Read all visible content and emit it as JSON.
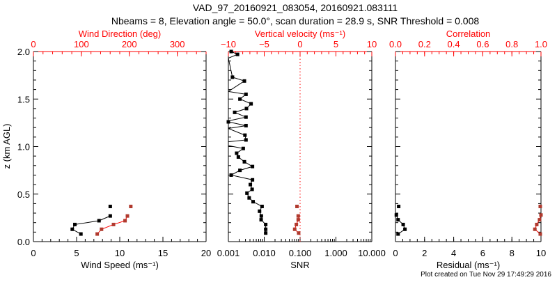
{
  "title": "VAD_97_20160921_083054, 20160921.083111",
  "subtitle": "Nbeams = 8, Elevation angle = 50.0°, scan duration = 28.9 s, SNR Threshold = 0.008",
  "footer": "Plot created on Tue Nov 29 17:49:29 2016",
  "colors": {
    "primary": "#000000",
    "secondary": "#ff0000",
    "secondary_marker": "#b03a2e"
  },
  "ylabel": "z (km AGL)",
  "yticks": [
    "0.0",
    "0.5",
    "1.0",
    "1.5",
    "2.0"
  ],
  "chart_data": [
    {
      "type": "line",
      "ylim": [
        0,
        2
      ],
      "xlabel": "Wind Speed (ms⁻¹)",
      "xlim": [
        0,
        20
      ],
      "xticks": [
        "0",
        "5",
        "10",
        "15",
        "20"
      ],
      "top_label": "Wind Direction (deg)",
      "top_lim": [
        0,
        360
      ],
      "top_ticks": [
        "0",
        "100",
        "200",
        "300"
      ],
      "series": [
        {
          "name": "Wind Speed",
          "axis": "bottom",
          "color": "#000000",
          "z": [
            0.37,
            0.27,
            0.22,
            0.18,
            0.13,
            0.08
          ],
          "values": [
            8.9,
            8.9,
            7.6,
            4.8,
            4.5,
            5.5
          ],
          "line_from": 1
        },
        {
          "name": "Wind Direction",
          "axis": "top",
          "color": "#b03a2e",
          "z": [
            0.37,
            0.27,
            0.22,
            0.18,
            0.13,
            0.08
          ],
          "values": [
            203,
            196,
            191,
            167,
            142,
            133
          ],
          "line_from": 1
        }
      ]
    },
    {
      "type": "line",
      "ylim": [
        0,
        2
      ],
      "xlabel": "SNR",
      "xscale": "log",
      "xlim": [
        0.001,
        10
      ],
      "xticks": [
        "0.001",
        "0.010",
        "0.100",
        "1.000",
        "10.000"
      ],
      "top_label": "Vertical velocity (ms⁻¹)",
      "top_lim": [
        -10,
        10
      ],
      "top_ticks": [
        "−10",
        "−5",
        "0",
        "5",
        "10"
      ],
      "zero_line": 0,
      "series": [
        {
          "name": "SNR",
          "axis": "bottom",
          "color": "#000000",
          "z": [
            2.0,
            1.97,
            1.93,
            1.73,
            1.69,
            1.58,
            1.55,
            1.5,
            1.45,
            1.4,
            1.36,
            1.31,
            1.27,
            1.26,
            1.22,
            1.19,
            1.12,
            1.07,
            1.05,
            1.01,
            0.98,
            0.93,
            0.89,
            0.84,
            0.79,
            0.75,
            0.7,
            0.65,
            0.6,
            0.55,
            0.51,
            0.46,
            0.42,
            0.37,
            0.32,
            0.27,
            0.23,
            0.18,
            0.13,
            0.09
          ],
          "values": [
            0.0012,
            0.0018,
            0.0005,
            0.0013,
            0.0028,
            0.0005,
            0.0031,
            0.0021,
            0.0043,
            0.0032,
            0.0015,
            0.0031,
            0.0005,
            0.001,
            0.0031,
            0.0005,
            0.0029,
            0.0031,
            0.0005,
            0.0005,
            0.0026,
            0.0017,
            0.0019,
            0.0028,
            0.0047,
            0.0021,
            0.0012,
            0.0047,
            0.0041,
            0.0046,
            0.0033,
            0.0038,
            0.0049,
            0.0087,
            0.0074,
            0.0083,
            0.0082,
            0.011,
            0.011,
            0.011
          ],
          "line_from": 0
        },
        {
          "name": "Vertical velocity",
          "axis": "top",
          "color": "#b03a2e",
          "z": [
            0.37,
            0.27,
            0.23,
            0.18,
            0.13,
            0.09
          ],
          "values": [
            -0.43,
            -0.26,
            -0.26,
            -0.52,
            -0.75,
            -0.2
          ],
          "line_from": 1
        }
      ]
    },
    {
      "type": "line",
      "ylim": [
        0,
        2
      ],
      "xlabel": "Residual (ms⁻¹)",
      "xlim": [
        0,
        10
      ],
      "xticks": [
        "0",
        "2",
        "4",
        "6",
        "8",
        "10"
      ],
      "top_label": "Correlation",
      "top_lim": [
        0,
        1
      ],
      "top_ticks": [
        "0.0",
        "0.2",
        "0.4",
        "0.6",
        "0.8",
        "1.0"
      ],
      "series": [
        {
          "name": "Residual",
          "axis": "bottom",
          "color": "#000000",
          "z": [
            0.37,
            0.28,
            0.23,
            0.18,
            0.13,
            0.08
          ],
          "values": [
            0.22,
            0.06,
            0.18,
            0.53,
            0.65,
            0.18
          ],
          "line_from": 1
        },
        {
          "name": "Correlation",
          "axis": "top",
          "color": "#b03a2e",
          "z": [
            0.37,
            0.28,
            0.23,
            0.18,
            0.13,
            0.08
          ],
          "values": [
            0.995,
            1.0,
            0.99,
            0.971,
            0.958,
            0.995
          ],
          "line_from": 1
        }
      ]
    }
  ]
}
